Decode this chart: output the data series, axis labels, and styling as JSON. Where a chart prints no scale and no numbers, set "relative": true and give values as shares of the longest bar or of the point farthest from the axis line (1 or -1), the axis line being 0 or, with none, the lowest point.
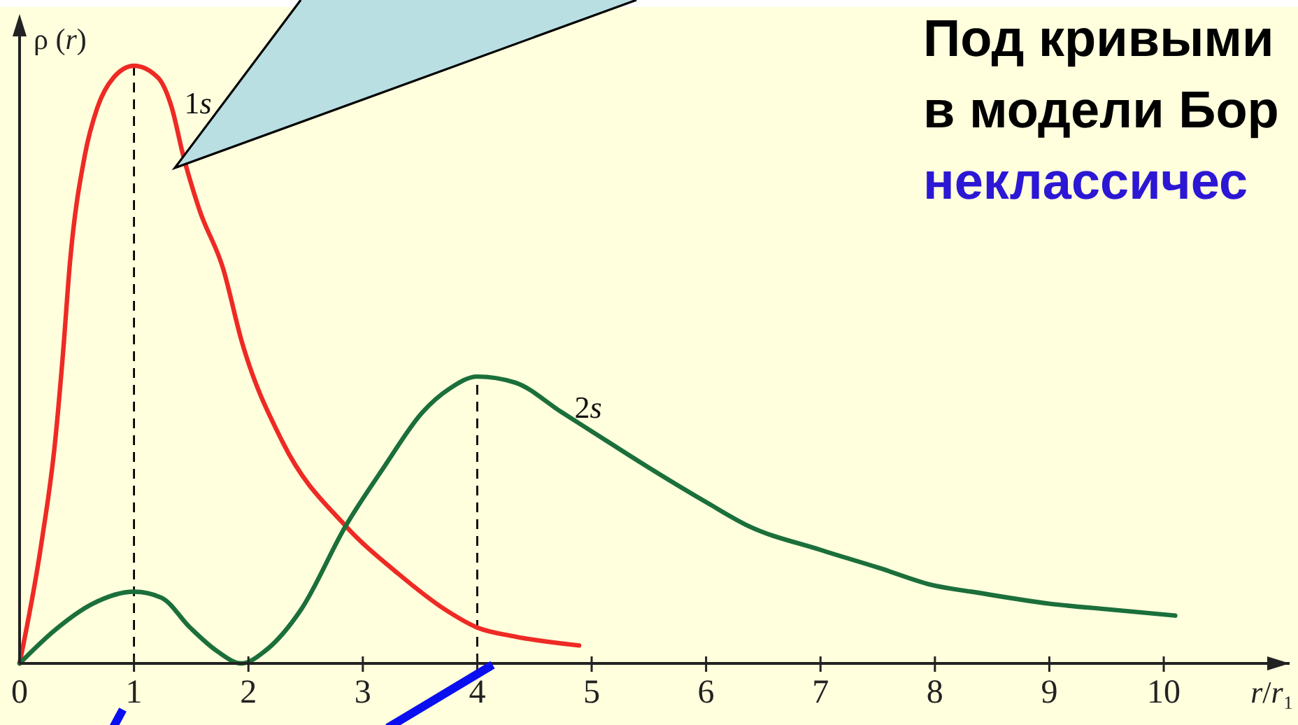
{
  "chart_data": {
    "type": "line",
    "relative": true,
    "ylabel": "ρ (r)",
    "xlabel": "r/r₁",
    "xlim": [
      0,
      11.1
    ],
    "xticks": [
      0,
      1,
      2,
      3,
      4,
      5,
      6,
      7,
      8,
      9,
      10
    ],
    "line_style": "solid",
    "series": [
      {
        "name": "1s",
        "color": "#ee2a24",
        "x": [
          0,
          0.19,
          0.31,
          0.38,
          0.44,
          0.57,
          0.68,
          0.82,
          1.0,
          1.21,
          1.33,
          1.43,
          1.57,
          1.78,
          1.94,
          2.3,
          2.85,
          3.31,
          3.72,
          4.0,
          4.33,
          4.89
        ],
        "values": [
          0,
          0.2,
          0.37,
          0.52,
          0.67,
          0.85,
          0.93,
          0.98,
          1.0,
          0.98,
          0.93,
          0.85,
          0.76,
          0.66,
          0.54,
          0.37,
          0.23,
          0.15,
          0.09,
          0.06,
          0.045,
          0.03
        ]
      },
      {
        "name": "2s",
        "color": "#1b6f3a",
        "x": [
          0,
          0.31,
          0.64,
          1.0,
          1.24,
          1.49,
          1.73,
          1.94,
          2.14,
          2.46,
          2.85,
          3.19,
          3.52,
          3.76,
          4.0,
          4.33,
          4.74,
          5.15,
          5.48,
          6.0,
          6.37,
          7.0,
          7.51,
          8.0,
          8.32,
          9.0,
          9.54,
          10.1
        ],
        "values": [
          0,
          0.056,
          0.1,
          0.12,
          0.11,
          0.06,
          0.02,
          0,
          0.02,
          0.09,
          0.23,
          0.33,
          0.42,
          0.46,
          0.48,
          0.47,
          0.42,
          0.37,
          0.33,
          0.27,
          0.23,
          0.19,
          0.16,
          0.13,
          0.12,
          0.1,
          0.09,
          0.08
        ]
      }
    ],
    "ref_lines": [
      {
        "axis": "x",
        "value": 1,
        "color": "#000000",
        "line_style": "dashed"
      },
      {
        "axis": "x",
        "value": 4,
        "color": "#000000",
        "line_style": "dashed"
      }
    ],
    "annotations": [
      "Под кривыми",
      "в модели Бор",
      "неклассичес"
    ]
  }
}
